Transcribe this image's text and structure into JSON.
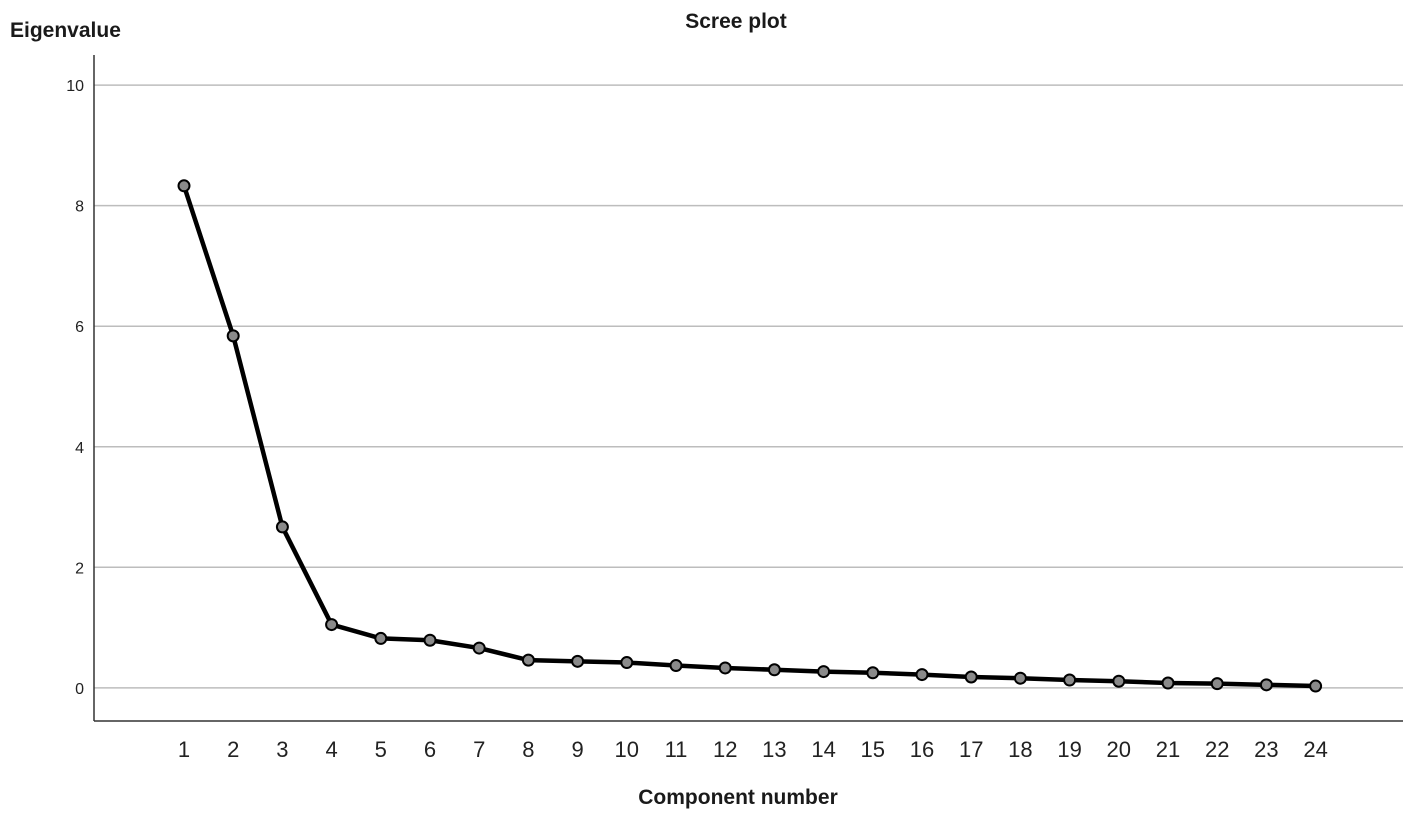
{
  "chart_data": {
    "type": "line",
    "title": "Scree plot",
    "xlabel": "Component number",
    "ylabel": "Eigenvalue",
    "ylim": [
      -0.55,
      10.5
    ],
    "yticks": [
      0,
      2,
      4,
      6,
      8,
      10
    ],
    "grid": true,
    "colors": {
      "line": "#000000",
      "marker_fill": "#8a8a8a",
      "grid": "#bdbdbd"
    },
    "x": [
      1,
      2,
      3,
      4,
      5,
      6,
      7,
      8,
      9,
      10,
      11,
      12,
      13,
      14,
      15,
      16,
      17,
      18,
      19,
      20,
      21,
      22,
      23,
      24
    ],
    "series": [
      {
        "values": [
          8.33,
          5.84,
          2.67,
          1.05,
          0.82,
          0.79,
          0.66,
          0.46,
          0.44,
          0.42,
          0.37,
          0.33,
          0.3,
          0.27,
          0.25,
          0.22,
          0.18,
          0.16,
          0.13,
          0.11,
          0.08,
          0.07,
          0.05,
          0.03
        ]
      }
    ]
  }
}
